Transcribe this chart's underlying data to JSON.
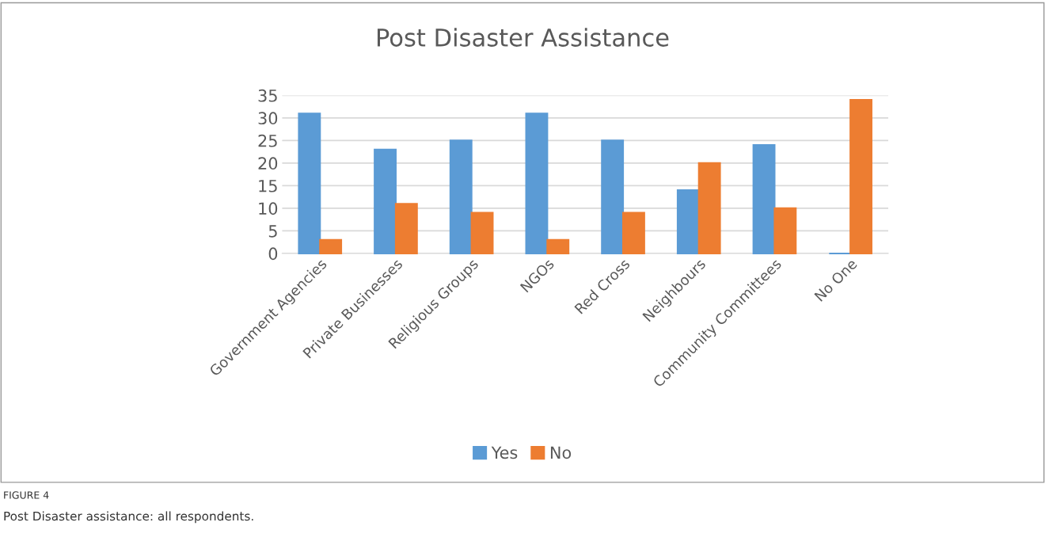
{
  "chart_data": {
    "type": "bar",
    "title": "Post Disaster Assistance",
    "categories": [
      "Government Agencies",
      "Private Businesses",
      "Religious Groups",
      "NGOs",
      "Red Cross",
      "Neighbours",
      "Community Committees",
      "No One"
    ],
    "series": [
      {
        "name": "Yes",
        "color": "#5b9bd5",
        "values": [
          31,
          23,
          25,
          31,
          25,
          14,
          24,
          0
        ]
      },
      {
        "name": "No",
        "color": "#ed7d31",
        "values": [
          3,
          11,
          9,
          3,
          9,
          20,
          10,
          34
        ]
      }
    ],
    "ylim": [
      0,
      35
    ],
    "yticks": [
      0,
      5,
      10,
      15,
      20,
      25,
      30,
      35
    ],
    "grid": "y",
    "legend": "bottom",
    "annotations": [
      "FIGURE 4",
      "Post Disaster assistance: all respondents."
    ]
  }
}
